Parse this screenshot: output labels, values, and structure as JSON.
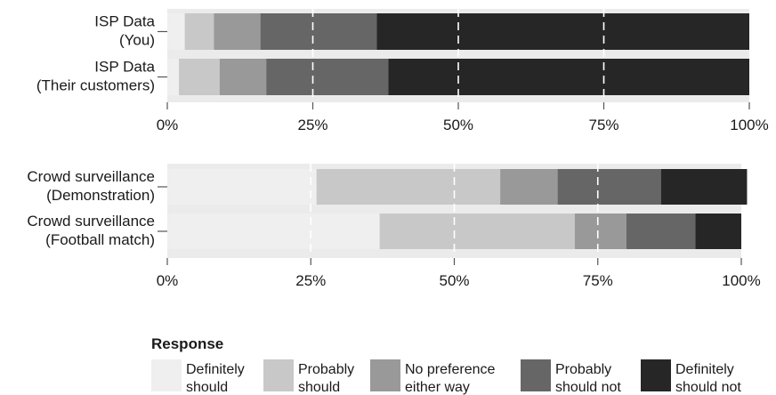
{
  "colors": {
    "definitely_should": "#efefef",
    "probably_should": "#c8c8c8",
    "no_preference": "#999999",
    "probably_should_not": "#666666",
    "definitely_should_not": "#262626",
    "panel_bg": "#ebebeb",
    "axis": "#555555",
    "gridline": "#ffffff"
  },
  "legend": {
    "title": "Response",
    "items": [
      {
        "key": "definitely_should",
        "line1": "Definitely",
        "line2": "should"
      },
      {
        "key": "probably_should",
        "line1": "Probably",
        "line2": "should"
      },
      {
        "key": "no_preference",
        "line1": "No preference",
        "line2": "either way"
      },
      {
        "key": "probably_should_not",
        "line1": "Probably",
        "line2": "should not"
      },
      {
        "key": "definitely_should_not",
        "line1": "Definitely",
        "line2": "should not"
      }
    ]
  },
  "chart_data": [
    {
      "type": "bar",
      "orientation": "horizontal",
      "stacked": true,
      "categories": [
        {
          "line1": "ISP Data",
          "line2": "(You)"
        },
        {
          "line1": "ISP Data",
          "line2": "(Their customers)"
        }
      ],
      "series": [
        {
          "name": "Definitely should",
          "key": "definitely_should",
          "values": [
            3,
            2
          ]
        },
        {
          "name": "Probably should",
          "key": "probably_should",
          "values": [
            5,
            7
          ]
        },
        {
          "name": "No preference either way",
          "key": "no_preference",
          "values": [
            8,
            8
          ]
        },
        {
          "name": "Probably should not",
          "key": "probably_should_not",
          "values": [
            20,
            21
          ]
        },
        {
          "name": "Definitely should not",
          "key": "definitely_should_not",
          "values": [
            64,
            62
          ]
        }
      ],
      "x_ticks": [
        "0%",
        "25%",
        "50%",
        "75%",
        "100%"
      ],
      "xlim": [
        0,
        100
      ],
      "gridlines": [
        25,
        50,
        75
      ]
    },
    {
      "type": "bar",
      "orientation": "horizontal",
      "stacked": true,
      "categories": [
        {
          "line1": "Crowd surveillance",
          "line2": "(Demonstration)"
        },
        {
          "line1": "Crowd surveillance",
          "line2": "(Football match)"
        }
      ],
      "series": [
        {
          "name": "Definitely should",
          "key": "definitely_should",
          "values": [
            26,
            37
          ]
        },
        {
          "name": "Probably should",
          "key": "probably_should",
          "values": [
            32,
            34
          ]
        },
        {
          "name": "No preference either way",
          "key": "no_preference",
          "values": [
            10,
            9
          ]
        },
        {
          "name": "Probably should not",
          "key": "probably_should_not",
          "values": [
            18,
            12
          ]
        },
        {
          "name": "Definitely should not",
          "key": "definitely_should_not",
          "values": [
            15,
            8
          ]
        }
      ],
      "x_ticks": [
        "0%",
        "25%",
        "50%",
        "75%",
        "100%"
      ],
      "xlim": [
        0,
        100
      ],
      "gridlines": [
        25,
        50,
        75
      ]
    }
  ]
}
